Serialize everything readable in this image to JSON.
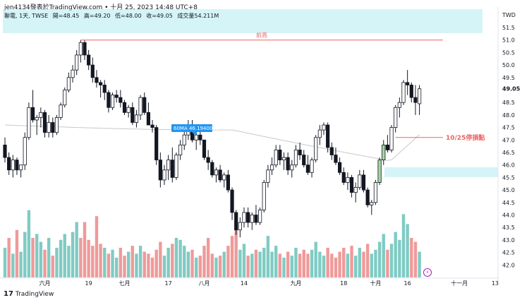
{
  "header": {
    "caption": "jen4134發表於TradingView.com • 十月 25, 2023 14:48 UTC+8",
    "symbol": "聯電, 1天, TWSE",
    "open": "開=48.45",
    "high": "高=49.20",
    "low": "低=48.00",
    "close": "收=49.05",
    "volume": "成交量54.211M",
    "currency": "TWD"
  },
  "brand": {
    "name": "TradingView",
    "mark": "17"
  },
  "colors": {
    "up": "#ffffff",
    "down": "#131722",
    "up_highlight": "#a5d6a7",
    "volume_up": "#80cbc4",
    "volume_down": "#ef9a9a",
    "zone": "#b2ebf2",
    "resistance": "#f06262",
    "stop": "#f06262",
    "ma": "#c9c9c9",
    "ma_label_bg": "#2196f3",
    "price_tag_bg": "#ffffff",
    "grid_text": "#131722"
  },
  "chart_data": {
    "type": "candlestick",
    "y_axis_ticks": [
      "51.5",
      "51.0",
      "50.5",
      "50.0",
      "49.5",
      "49.05",
      "48.5",
      "48.0",
      "47.5",
      "47.0",
      "46.5",
      "46.0",
      "45.5",
      "45.0",
      "44.5",
      "44.0",
      "43.5",
      "43.0",
      "42.5",
      "42.0"
    ],
    "ylim": [
      41.7,
      52.0
    ],
    "x_tick_labels": [
      {
        "label": "六月",
        "idx": 10
      },
      {
        "label": "19",
        "idx": 21
      },
      {
        "label": "七月",
        "idx": 30
      },
      {
        "label": "17",
        "idx": 41
      },
      {
        "label": "八月",
        "idx": 50
      },
      {
        "label": "14",
        "idx": 60
      },
      {
        "label": "九月",
        "idx": 73
      },
      {
        "label": "18",
        "idx": 85
      },
      {
        "label": "十月",
        "idx": 93
      },
      {
        "label": "16",
        "idx": 101
      },
      {
        "label": "十一月",
        "idx": 114
      },
      {
        "label": "13",
        "idx": 123
      }
    ],
    "last_price": "49.05",
    "resistance": {
      "label": "前高",
      "value": 51.0
    },
    "stop_line": {
      "label": "10/25停損點",
      "value": 47.1
    },
    "ma": {
      "label": "60MA 46.1940002",
      "value": 46.194
    },
    "candles": [
      [
        46.8,
        47.1,
        46.1,
        46.3
      ],
      [
        46.3,
        46.5,
        45.6,
        45.8
      ],
      [
        45.8,
        46.4,
        45.5,
        46.2
      ],
      [
        46.2,
        46.3,
        45.6,
        45.8
      ],
      [
        45.8,
        46.0,
        45.5,
        46.0
      ],
      [
        46.0,
        47.3,
        45.8,
        47.1
      ],
      [
        47.1,
        48.5,
        47.0,
        48.3
      ],
      [
        48.3,
        49.0,
        47.7,
        47.8
      ],
      [
        47.8,
        48.0,
        47.2,
        47.9
      ],
      [
        47.9,
        48.3,
        47.5,
        48.1
      ],
      [
        48.1,
        48.2,
        47.1,
        47.3
      ],
      [
        47.3,
        48.0,
        47.1,
        47.7
      ],
      [
        47.7,
        47.9,
        47.1,
        47.3
      ],
      [
        47.3,
        48.0,
        47.2,
        47.9
      ],
      [
        47.9,
        48.5,
        47.8,
        48.4
      ],
      [
        48.4,
        49.1,
        48.3,
        49.0
      ],
      [
        49.0,
        49.7,
        48.9,
        49.5
      ],
      [
        49.5,
        50.0,
        49.3,
        49.8
      ],
      [
        49.8,
        50.6,
        49.6,
        50.4
      ],
      [
        50.4,
        51.0,
        50.1,
        50.9
      ],
      [
        50.9,
        51.0,
        50.2,
        50.4
      ],
      [
        50.4,
        50.6,
        49.8,
        50.0
      ],
      [
        50.0,
        50.3,
        49.3,
        49.5
      ],
      [
        49.5,
        49.8,
        49.1,
        49.3
      ],
      [
        49.3,
        49.4,
        48.7,
        49.2
      ],
      [
        49.2,
        49.4,
        48.6,
        48.9
      ],
      [
        48.9,
        49.0,
        48.1,
        48.3
      ],
      [
        48.3,
        48.9,
        48.2,
        48.8
      ],
      [
        48.8,
        49.0,
        48.5,
        48.7
      ],
      [
        48.7,
        49.0,
        48.3,
        48.5
      ],
      [
        48.5,
        48.6,
        48.0,
        48.1
      ],
      [
        48.1,
        48.4,
        47.9,
        48.3
      ],
      [
        48.3,
        48.5,
        47.6,
        47.7
      ],
      [
        47.7,
        48.2,
        47.5,
        48.0
      ],
      [
        48.0,
        48.8,
        47.8,
        48.7
      ],
      [
        48.7,
        48.9,
        48.0,
        48.1
      ],
      [
        48.1,
        48.5,
        47.6,
        47.6
      ],
      [
        47.6,
        47.8,
        47.3,
        47.5
      ],
      [
        47.5,
        47.6,
        46.0,
        46.2
      ],
      [
        46.2,
        46.5,
        45.1,
        45.4
      ],
      [
        45.4,
        46.0,
        45.2,
        45.8
      ],
      [
        45.8,
        46.4,
        45.4,
        46.2
      ],
      [
        46.2,
        46.7,
        45.3,
        45.5
      ],
      [
        45.5,
        46.5,
        45.4,
        46.4
      ],
      [
        46.4,
        47.0,
        46.2,
        46.8
      ],
      [
        46.8,
        47.4,
        46.6,
        47.2
      ],
      [
        47.2,
        47.8,
        47.0,
        47.6
      ],
      [
        47.6,
        47.8,
        46.9,
        47.0
      ],
      [
        47.0,
        47.4,
        46.6,
        47.2
      ],
      [
        47.2,
        47.6,
        46.8,
        47.0
      ],
      [
        47.0,
        47.0,
        46.2,
        46.3
      ],
      [
        46.3,
        46.6,
        45.8,
        46.1
      ],
      [
        46.1,
        46.2,
        45.5,
        45.6
      ],
      [
        45.6,
        45.9,
        45.3,
        45.8
      ],
      [
        45.8,
        46.0,
        45.3,
        45.4
      ],
      [
        45.4,
        45.7,
        45.1,
        45.6
      ],
      [
        45.6,
        45.8,
        44.9,
        45.0
      ],
      [
        45.0,
        45.1,
        43.8,
        44.1
      ],
      [
        44.1,
        44.2,
        43.2,
        43.4
      ],
      [
        43.4,
        43.9,
        43.1,
        43.7
      ],
      [
        43.7,
        44.3,
        43.5,
        44.1
      ],
      [
        44.1,
        44.3,
        43.5,
        43.7
      ],
      [
        43.7,
        44.1,
        43.4,
        44.0
      ],
      [
        44.0,
        44.4,
        43.6,
        43.7
      ],
      [
        43.7,
        44.3,
        43.6,
        44.2
      ],
      [
        44.2,
        45.4,
        44.1,
        45.3
      ],
      [
        45.3,
        46.0,
        45.1,
        45.8
      ],
      [
        45.8,
        46.3,
        45.6,
        46.0
      ],
      [
        46.0,
        46.8,
        45.9,
        46.6
      ],
      [
        46.6,
        46.8,
        46.0,
        46.2
      ],
      [
        46.2,
        46.5,
        45.8,
        46.3
      ],
      [
        46.3,
        46.5,
        45.6,
        45.8
      ],
      [
        45.8,
        46.2,
        45.5,
        46.0
      ],
      [
        46.0,
        46.8,
        45.9,
        46.6
      ],
      [
        46.6,
        46.9,
        46.2,
        46.4
      ],
      [
        46.4,
        46.6,
        45.9,
        46.0
      ],
      [
        46.0,
        46.4,
        45.6,
        45.7
      ],
      [
        45.7,
        46.3,
        45.5,
        46.2
      ],
      [
        46.2,
        47.2,
        46.1,
        47.1
      ],
      [
        47.1,
        47.6,
        46.8,
        47.4
      ],
      [
        47.4,
        47.7,
        47.2,
        47.6
      ],
      [
        47.6,
        47.7,
        46.5,
        46.7
      ],
      [
        46.7,
        46.9,
        46.2,
        46.4
      ],
      [
        46.4,
        46.7,
        46.0,
        46.1
      ],
      [
        46.1,
        46.3,
        45.6,
        45.7
      ],
      [
        45.7,
        45.9,
        45.2,
        45.3
      ],
      [
        45.3,
        45.7,
        45.0,
        45.5
      ],
      [
        45.5,
        45.6,
        44.7,
        44.9
      ],
      [
        44.9,
        45.3,
        44.5,
        45.1
      ],
      [
        45.1,
        45.8,
        45.0,
        45.6
      ],
      [
        45.6,
        45.8,
        44.9,
        45.0
      ],
      [
        45.0,
        45.1,
        44.3,
        44.4
      ],
      [
        44.4,
        44.6,
        44.0,
        44.5
      ],
      [
        44.5,
        45.4,
        44.4,
        45.3
      ],
      [
        45.3,
        46.3,
        45.2,
        46.2
      ],
      [
        46.2,
        47.0,
        46.0,
        46.8
      ],
      [
        46.8,
        47.2,
        46.5,
        46.6
      ],
      [
        46.6,
        47.6,
        46.5,
        47.5
      ],
      [
        47.5,
        48.4,
        47.3,
        48.3
      ],
      [
        48.3,
        48.7,
        47.9,
        48.5
      ],
      [
        48.5,
        49.4,
        48.4,
        49.3
      ],
      [
        49.3,
        49.8,
        48.8,
        49.2
      ],
      [
        49.2,
        49.3,
        48.5,
        48.7
      ],
      [
        48.7,
        49.2,
        48.0,
        48.5
      ],
      [
        48.45,
        49.2,
        48.0,
        49.05
      ]
    ],
    "volumes": [
      [
        1.5,
        1
      ],
      [
        2.0,
        0
      ],
      [
        1.2,
        1
      ],
      [
        2.4,
        0
      ],
      [
        1.3,
        1
      ],
      [
        2.3,
        1
      ],
      [
        3.4,
        1
      ],
      [
        2.0,
        0
      ],
      [
        2.2,
        1
      ],
      [
        1.8,
        1
      ],
      [
        1.4,
        0
      ],
      [
        2.0,
        1
      ],
      [
        1.1,
        0
      ],
      [
        1.5,
        1
      ],
      [
        1.9,
        1
      ],
      [
        2.2,
        1
      ],
      [
        1.6,
        1
      ],
      [
        2.3,
        1
      ],
      [
        2.8,
        1
      ],
      [
        2.0,
        0
      ],
      [
        2.8,
        0
      ],
      [
        1.9,
        0
      ],
      [
        1.6,
        0
      ],
      [
        3.1,
        0
      ],
      [
        1.7,
        0
      ],
      [
        1.5,
        1
      ],
      [
        1.2,
        0
      ],
      [
        1.4,
        1
      ],
      [
        1.0,
        1
      ],
      [
        1.5,
        0
      ],
      [
        1.1,
        0
      ],
      [
        1.3,
        1
      ],
      [
        1.6,
        0
      ],
      [
        1.2,
        1
      ],
      [
        1.6,
        1
      ],
      [
        1.3,
        0
      ],
      [
        1.2,
        0
      ],
      [
        1.0,
        0
      ],
      [
        1.4,
        0
      ],
      [
        1.8,
        0
      ],
      [
        1.1,
        1
      ],
      [
        1.5,
        1
      ],
      [
        1.7,
        0
      ],
      [
        2.0,
        1
      ],
      [
        1.9,
        1
      ],
      [
        1.6,
        1
      ],
      [
        1.3,
        1
      ],
      [
        1.4,
        0
      ],
      [
        1.0,
        1
      ],
      [
        1.1,
        0
      ],
      [
        1.6,
        0
      ],
      [
        2.0,
        0
      ],
      [
        1.2,
        0
      ],
      [
        1.0,
        1
      ],
      [
        1.1,
        0
      ],
      [
        1.3,
        1
      ],
      [
        1.6,
        0
      ],
      [
        2.1,
        0
      ],
      [
        2.5,
        0
      ],
      [
        1.4,
        1
      ],
      [
        1.7,
        1
      ],
      [
        1.1,
        0
      ],
      [
        1.2,
        1
      ],
      [
        1.4,
        0
      ],
      [
        1.3,
        1
      ],
      [
        1.5,
        1
      ],
      [
        2.1,
        1
      ],
      [
        1.3,
        1
      ],
      [
        1.6,
        1
      ],
      [
        1.2,
        0
      ],
      [
        1.0,
        1
      ],
      [
        1.3,
        0
      ],
      [
        1.1,
        1
      ],
      [
        1.5,
        1
      ],
      [
        1.2,
        0
      ],
      [
        1.4,
        0
      ],
      [
        1.2,
        0
      ],
      [
        1.4,
        1
      ],
      [
        1.8,
        1
      ],
      [
        1.3,
        1
      ],
      [
        1.1,
        1
      ],
      [
        1.5,
        0
      ],
      [
        1.2,
        0
      ],
      [
        1.0,
        0
      ],
      [
        1.3,
        0
      ],
      [
        1.5,
        0
      ],
      [
        1.2,
        1
      ],
      [
        1.6,
        0
      ],
      [
        1.1,
        1
      ],
      [
        1.5,
        1
      ],
      [
        1.3,
        0
      ],
      [
        1.7,
        0
      ],
      [
        1.2,
        1
      ],
      [
        1.4,
        1
      ],
      [
        1.8,
        1
      ],
      [
        2.2,
        1
      ],
      [
        1.4,
        0
      ],
      [
        1.7,
        1
      ],
      [
        2.3,
        1
      ],
      [
        1.9,
        1
      ],
      [
        3.2,
        1
      ],
      [
        2.7,
        1
      ],
      [
        2.0,
        0
      ],
      [
        1.8,
        0
      ],
      [
        1.3,
        1
      ]
    ]
  }
}
